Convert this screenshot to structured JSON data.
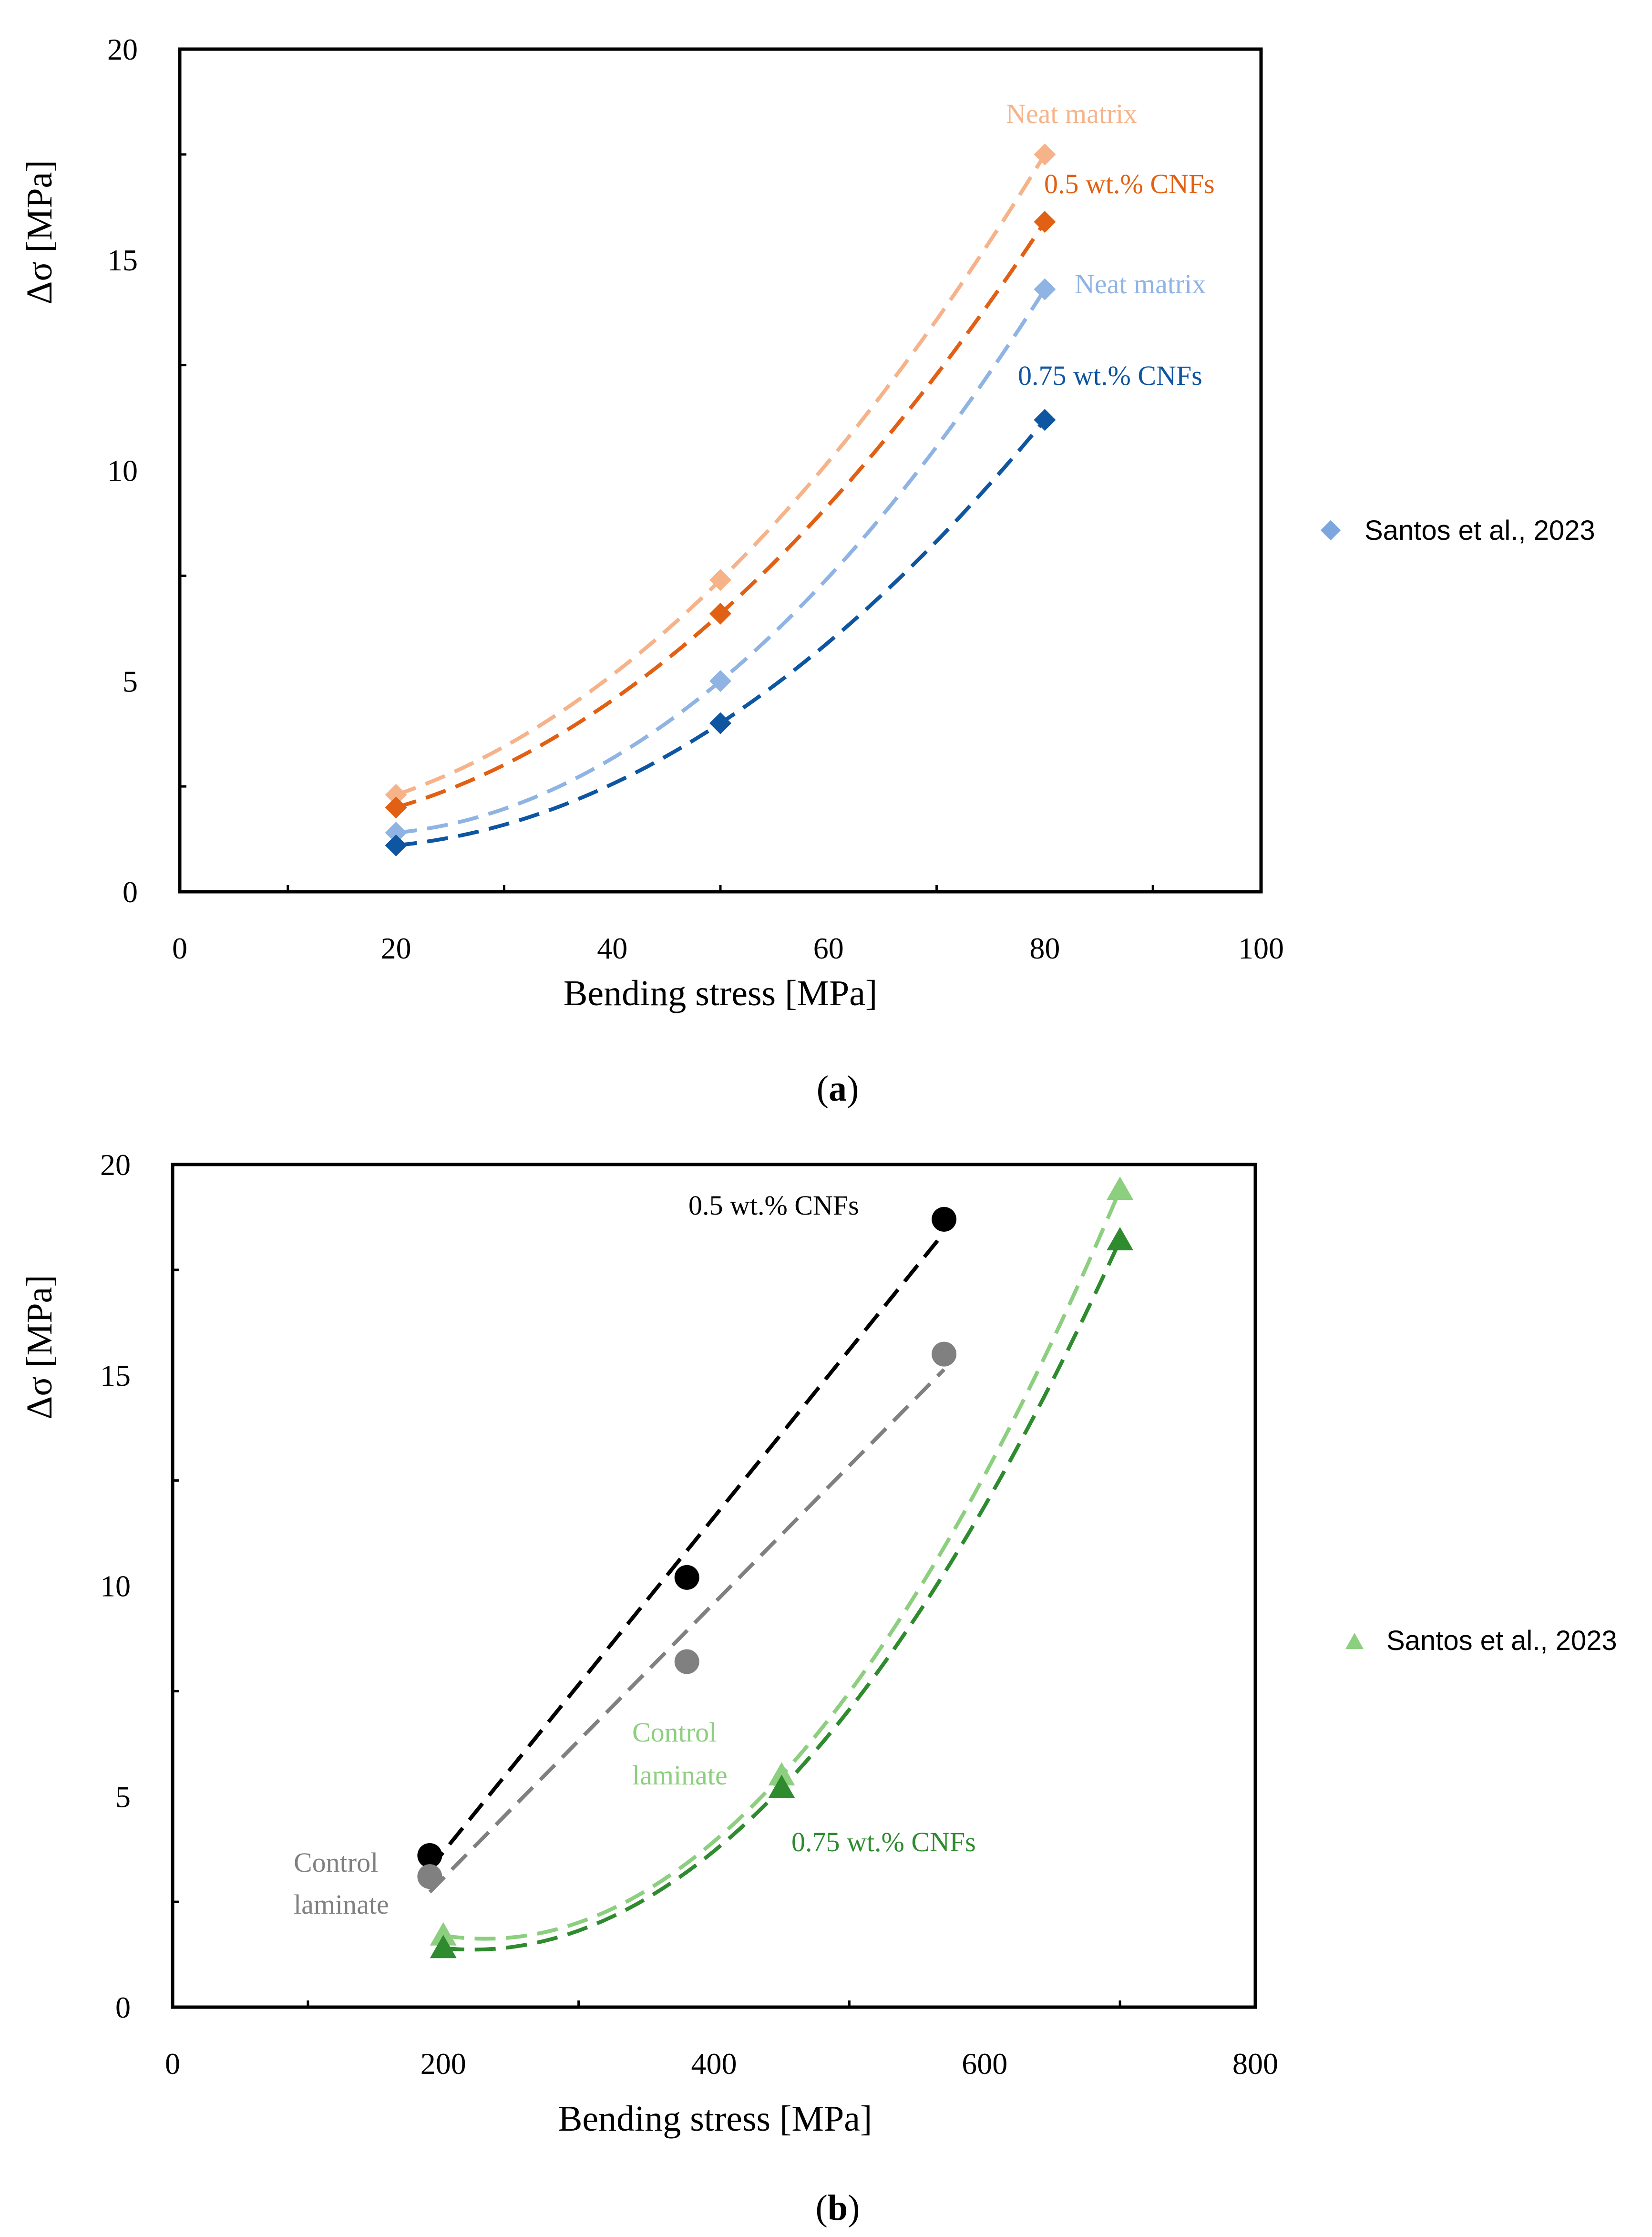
{
  "figure_panels": [
    {
      "id": "a",
      "caption_letter": "a"
    },
    {
      "id": "b",
      "caption_letter": "b"
    }
  ],
  "chart_data": [
    {
      "panel": "a",
      "type": "scatter",
      "title": "",
      "xlabel": "Bending stress [MPa]",
      "ylabel": "Δσ [MPa]",
      "xlim": [
        0,
        100
      ],
      "ylim": [
        0,
        20
      ],
      "xticks": [
        0,
        20,
        40,
        60,
        80,
        100
      ],
      "yticks": [
        0,
        5,
        10,
        15,
        20
      ],
      "legend": {
        "label": "Santos et al., 2023",
        "marker": "diamond",
        "color": "#7BA7DE",
        "placement": "right"
      },
      "series": [
        {
          "name": "Neat matrix",
          "color": "#F6B38A",
          "marker": "diamond",
          "x": [
            20,
            50,
            80
          ],
          "y": [
            2.3,
            7.4,
            17.5
          ],
          "fit": "dashed-curve"
        },
        {
          "name": "0.5 wt.% CNFs",
          "color": "#E26013",
          "marker": "diamond",
          "x": [
            20,
            50,
            80
          ],
          "y": [
            2.0,
            6.6,
            15.9
          ],
          "fit": "dashed-curve"
        },
        {
          "name": "Neat matrix",
          "color": "#8FB4E3",
          "marker": "diamond",
          "x": [
            20,
            50,
            80
          ],
          "y": [
            1.4,
            5.0,
            14.3
          ],
          "fit": "dashed-curve"
        },
        {
          "name": "0.75 wt.% CNFs",
          "color": "#0E55A2",
          "marker": "diamond",
          "x": [
            20,
            50,
            80
          ],
          "y": [
            1.1,
            4.0,
            11.2
          ],
          "fit": "dashed-curve"
        }
      ],
      "annotations": [
        {
          "text": "Neat matrix",
          "color": "#F6B38A"
        },
        {
          "text": "0.5 wt.% CNFs",
          "color": "#E26013"
        },
        {
          "text": "Neat matrix",
          "color": "#8FB4E3"
        },
        {
          "text": "0.75 wt.% CNFs",
          "color": "#0E55A2"
        }
      ]
    },
    {
      "panel": "b",
      "type": "scatter",
      "title": "",
      "xlabel": "Bending stress [MPa]",
      "ylabel": "Δσ [MPa]",
      "xlim": [
        0,
        800
      ],
      "ylim": [
        0,
        20
      ],
      "xticks": [
        0,
        200,
        400,
        600,
        800
      ],
      "yticks": [
        0,
        5,
        10,
        15,
        20
      ],
      "legend": {
        "label": "Santos et al., 2023",
        "marker": "triangle",
        "color": "#8CCF7E",
        "placement": "right"
      },
      "series": [
        {
          "name": "0.5 wt.% CNFs",
          "color": "#000000",
          "marker": "circle",
          "x": [
            190,
            380,
            570
          ],
          "y": [
            3.6,
            10.2,
            18.7
          ],
          "fit": "dashed-line"
        },
        {
          "name": "Control laminate",
          "color": "#808080",
          "marker": "circle",
          "x": [
            190,
            380,
            570
          ],
          "y": [
            3.1,
            8.2,
            15.5
          ],
          "fit": "dashed-line"
        },
        {
          "name": "Control laminate",
          "color": "#8CCF7E",
          "marker": "triangle",
          "x": [
            200,
            450,
            700
          ],
          "y": [
            1.7,
            5.5,
            19.4
          ],
          "fit": "dashed-curve"
        },
        {
          "name": "0.75 wt.% CNFs",
          "color": "#2E8B2E",
          "marker": "triangle",
          "x": [
            200,
            450,
            700
          ],
          "y": [
            1.4,
            5.2,
            18.2
          ],
          "fit": "dashed-curve"
        }
      ],
      "annotations": [
        {
          "text": "0.5 wt.% CNFs",
          "color": "#000000"
        },
        {
          "text": [
            "Control",
            "laminate"
          ],
          "color": "#808080"
        },
        {
          "text": [
            "Control",
            "laminate"
          ],
          "color": "#8CCF7E"
        },
        {
          "text": "0.75 wt.% CNFs",
          "color": "#2E8B2E"
        }
      ]
    }
  ]
}
